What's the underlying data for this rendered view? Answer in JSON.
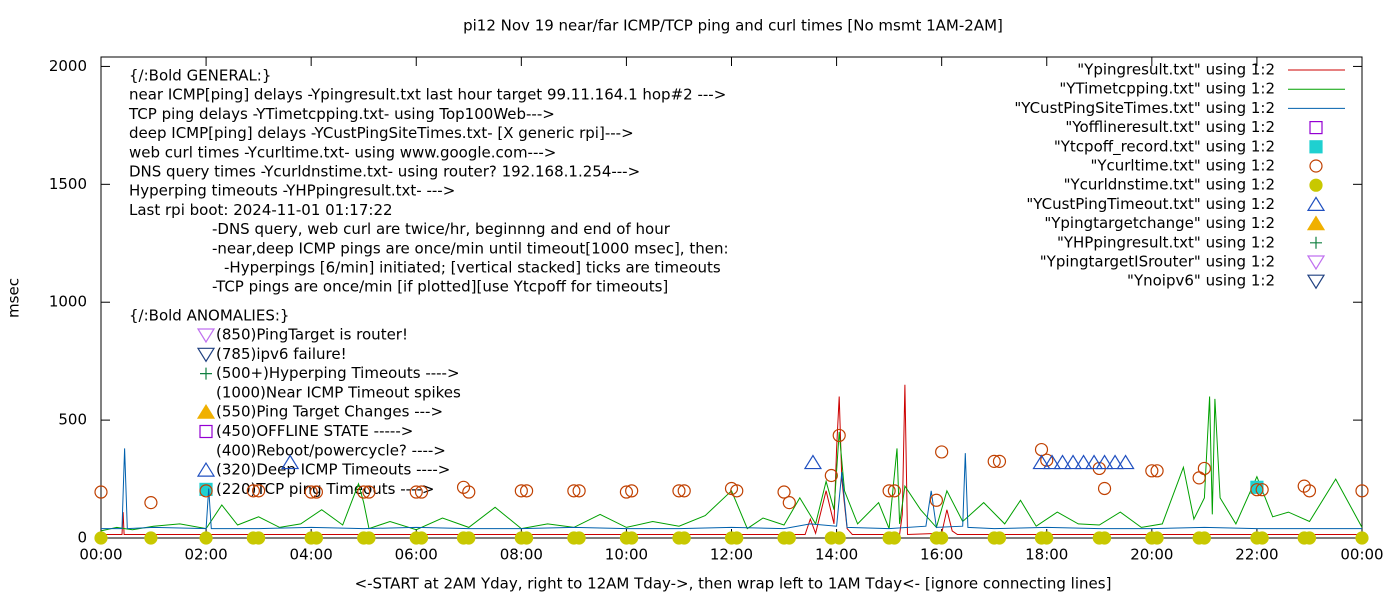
{
  "chart_data": {
    "type": "line",
    "title": "pi12 Nov 19  near/far ICMP/TCP ping and curl times [No msmt 1AM-2AM]",
    "x_label": "<-START at 2AM Yday, right to 12AM Tday->, then wrap left to 1AM Tday<- [ignore connecting lines]",
    "y_label": "msec",
    "xlim": [
      0,
      24
    ],
    "ylim": [
      0,
      2040
    ],
    "xticks": [
      {
        "value": 0,
        "label": "00:00"
      },
      {
        "value": 2,
        "label": "02:00"
      },
      {
        "value": 4,
        "label": "04:00"
      },
      {
        "value": 6,
        "label": "06:00"
      },
      {
        "value": 8,
        "label": "08:00"
      },
      {
        "value": 10,
        "label": "10:00"
      },
      {
        "value": 12,
        "label": "12:00"
      },
      {
        "value": 14,
        "label": "14:00"
      },
      {
        "value": 16,
        "label": "16:00"
      },
      {
        "value": 18,
        "label": "18:00"
      },
      {
        "value": 20,
        "label": "20:00"
      },
      {
        "value": 22,
        "label": "22:00"
      },
      {
        "value": 24,
        "label": "00:00"
      }
    ],
    "yticks": [
      0,
      500,
      1000,
      1500,
      2000
    ],
    "legend": "top-right",
    "annotations": [
      "{/:Bold GENERAL:}",
      "near ICMP[ping] delays -Ypingresult.txt last hour target 99.11.164.1 hop#2 --->",
      "TCP ping delays -YTimetcpping.txt- using Top100Web--->",
      "deep ICMP[ping] delays -YCustPingSiteTimes.txt- [X generic rpi]--->",
      "web curl times -Ycurltime.txt- using www.google.com--->",
      "DNS query times -Ycurldnstime.txt- using router? 192.168.1.254--->",
      "Hyperping timeouts -YHPpingresult.txt- --->",
      "Last rpi boot: 2024-11-01 01:17:22",
      "-DNS query, web curl are twice/hr, beginnng and end of hour",
      "-near,deep ICMP pings are once/min until timeout[1000 msec], then:",
      "-Hyperpings [6/min] initiated; [vertical stacked] ticks are timeouts",
      "-TCP pings are once/min [if plotted][use Ytcpoff for timeouts]",
      "{/:Bold ANOMALIES:}",
      "(850)PingTarget is router!",
      "(785)ipv6 failure!",
      "(500+)Hyperping Timeouts ---->",
      "(1000)Near ICMP Timeout spikes",
      "(550)Ping Target Changes --->",
      "(450)OFFLINE STATE ----->",
      "(400)Reboot/powercycle? ---->",
      "(320)Deep ICMP Timeouts ---->",
      "(220)TCP ping Timeouts ---->"
    ],
    "series": [
      {
        "name": "\"Ypingresult.txt\" using 1:2",
        "marker": "line",
        "color": "#cc0000",
        "x": [
          0,
          0.4,
          0.42,
          0.44,
          1,
          3,
          5,
          7,
          9,
          11,
          13,
          13.4,
          13.5,
          13.6,
          13.8,
          13.95,
          14.0,
          14.05,
          14.1,
          14.2,
          14.3,
          15.2,
          15.25,
          15.3,
          15.35,
          16,
          16.1,
          16.2,
          16.3,
          17,
          19,
          21,
          23,
          24
        ],
        "values": [
          15,
          15,
          110,
          15,
          15,
          15,
          15,
          15,
          15,
          15,
          15,
          15,
          80,
          20,
          200,
          60,
          380,
          600,
          250,
          40,
          15,
          15,
          100,
          650,
          15,
          20,
          120,
          30,
          15,
          15,
          15,
          15,
          15,
          15
        ]
      },
      {
        "name": "\"YTimetcpping.txt\" using 1:2",
        "marker": "line",
        "color": "#00a000",
        "x": [
          0,
          0.3,
          0.45,
          0.6,
          1.0,
          1.5,
          2.0,
          2.3,
          2.6,
          3.0,
          3.4,
          3.8,
          4.2,
          4.6,
          4.9,
          5.0,
          5.1,
          5.5,
          6.0,
          6.5,
          7.0,
          7.5,
          8.0,
          8.5,
          9.0,
          9.5,
          10.0,
          10.5,
          11.0,
          11.5,
          12.0,
          12.3,
          12.6,
          13.0,
          13.3,
          13.6,
          13.8,
          13.95,
          14.05,
          14.15,
          14.4,
          14.8,
          15.0,
          15.15,
          15.2,
          15.3,
          15.6,
          15.9,
          16.1,
          16.4,
          16.8,
          17.2,
          17.5,
          17.8,
          18.2,
          18.6,
          19.0,
          19.4,
          19.8,
          20.2,
          20.6,
          20.8,
          21.0,
          21.1,
          21.15,
          21.2,
          21.3,
          21.6,
          22.0,
          22.3,
          22.6,
          23.0,
          23.5,
          24.0
        ],
        "values": [
          30,
          45,
          40,
          35,
          50,
          60,
          40,
          140,
          55,
          90,
          45,
          60,
          120,
          55,
          230,
          150,
          40,
          70,
          35,
          85,
          45,
          130,
          40,
          60,
          45,
          100,
          45,
          70,
          50,
          95,
          200,
          40,
          85,
          55,
          170,
          60,
          240,
          120,
          450,
          200,
          60,
          150,
          40,
          380,
          60,
          220,
          120,
          45,
          200,
          70,
          150,
          60,
          160,
          50,
          110,
          60,
          55,
          110,
          45,
          60,
          300,
          80,
          170,
          600,
          100,
          590,
          170,
          60,
          260,
          90,
          110,
          70,
          250,
          45
        ]
      },
      {
        "name": "\"YCustPingSiteTimes.txt\" using 1:2",
        "marker": "line",
        "color": "#0060ad",
        "x": [
          0,
          0.4,
          0.45,
          0.5,
          1,
          2,
          2.05,
          2.1,
          3,
          4,
          5,
          6,
          7,
          8,
          9,
          10,
          11,
          12,
          13,
          13.5,
          14.0,
          14.1,
          14.2,
          15,
          15.7,
          15.8,
          15.9,
          16.4,
          16.45,
          16.5,
          17,
          18,
          19,
          20,
          21,
          22,
          23,
          24
        ],
        "values": [
          40,
          40,
          380,
          40,
          45,
          40,
          210,
          40,
          40,
          45,
          40,
          45,
          40,
          40,
          45,
          40,
          40,
          45,
          40,
          60,
          50,
          280,
          45,
          40,
          50,
          200,
          45,
          50,
          360,
          45,
          40,
          45,
          40,
          40,
          45,
          40,
          40,
          40
        ]
      },
      {
        "name": "\"Yofflineresult.txt\" using 1:2",
        "marker": "square-open",
        "color": "#9400d3",
        "x": [],
        "values": []
      },
      {
        "name": "\"Ytcpoff_record.txt\" using 1:2",
        "marker": "square",
        "color": "#1fd0d0",
        "x": [
          22.0
        ],
        "values": [
          215
        ]
      },
      {
        "name": "\"Ycurltime.txt\" using 1:2",
        "marker": "circle-open",
        "color": "#c04000",
        "x": [
          0,
          0.95,
          2.0,
          2.9,
          3.0,
          4.0,
          4.1,
          5.0,
          5.1,
          6.0,
          6.1,
          6.9,
          7.0,
          8.0,
          8.1,
          9.0,
          9.1,
          10.0,
          10.1,
          11.0,
          11.1,
          12.0,
          12.1,
          13.0,
          13.1,
          13.9,
          14.05,
          15.0,
          15.1,
          15.9,
          16.0,
          17.0,
          17.1,
          17.9,
          18.0,
          19.0,
          19.1,
          20.0,
          20.1,
          20.9,
          21.0,
          22.0,
          22.1,
          22.9,
          23.0,
          24.0
        ],
        "values": [
          195,
          150,
          200,
          200,
          200,
          195,
          195,
          195,
          195,
          195,
          195,
          215,
          195,
          200,
          200,
          200,
          200,
          195,
          200,
          200,
          200,
          210,
          200,
          195,
          150,
          265,
          435,
          200,
          200,
          160,
          365,
          325,
          325,
          375,
          330,
          295,
          210,
          285,
          285,
          255,
          295,
          205,
          205,
          220,
          200,
          200
        ]
      },
      {
        "name": "\"Ycurldnstime.txt\" using 1:2",
        "marker": "circle",
        "color": "#c8c800",
        "x": [
          0,
          0.95,
          2.0,
          2.9,
          3.0,
          4.0,
          4.1,
          5.0,
          5.1,
          6.0,
          6.1,
          6.9,
          7.0,
          8.0,
          8.1,
          9.0,
          9.1,
          10.0,
          10.1,
          11.0,
          11.1,
          12.0,
          12.1,
          13.0,
          13.1,
          13.9,
          14.05,
          15.0,
          15.1,
          15.9,
          16.0,
          17.0,
          17.1,
          17.9,
          18.0,
          19.0,
          19.1,
          20.0,
          20.1,
          20.9,
          21.0,
          22.0,
          22.1,
          22.9,
          23.0,
          24.0
        ],
        "values": [
          0,
          0,
          0,
          0,
          0,
          0,
          0,
          0,
          0,
          0,
          0,
          0,
          0,
          0,
          0,
          0,
          0,
          0,
          0,
          0,
          0,
          0,
          0,
          0,
          0,
          0,
          0,
          0,
          0,
          0,
          0,
          0,
          0,
          0,
          0,
          0,
          0,
          0,
          0,
          0,
          0,
          0,
          0,
          0,
          0,
          0
        ]
      },
      {
        "name": "\"YCustPingTimeout.txt\" using 1:2",
        "marker": "triangle-open",
        "color": "#2050c0",
        "x": [
          3.6,
          13.55,
          17.9,
          18.1,
          18.3,
          18.5,
          18.7,
          18.9,
          19.1,
          19.3,
          19.5
        ],
        "values": [
          320,
          320,
          320,
          320,
          320,
          320,
          320,
          320,
          320,
          320,
          320
        ]
      },
      {
        "name": "\"Ypingtargetchange\" using 1:2",
        "marker": "triangle",
        "color": "#f0b000",
        "x": [],
        "values": []
      },
      {
        "name": "\"YHPpingresult.txt\" using 1:2",
        "marker": "plus",
        "color": "#108040",
        "x": [],
        "values": []
      },
      {
        "name": "\"YpingtargetISrouter\" using 1:2",
        "marker": "triangle-down-open",
        "color": "#c070f0",
        "x": [],
        "values": []
      },
      {
        "name": "\"Ynoipv6\" using 1:2",
        "marker": "triangle-down-open",
        "color": "#204080",
        "x": [],
        "values": []
      }
    ]
  }
}
